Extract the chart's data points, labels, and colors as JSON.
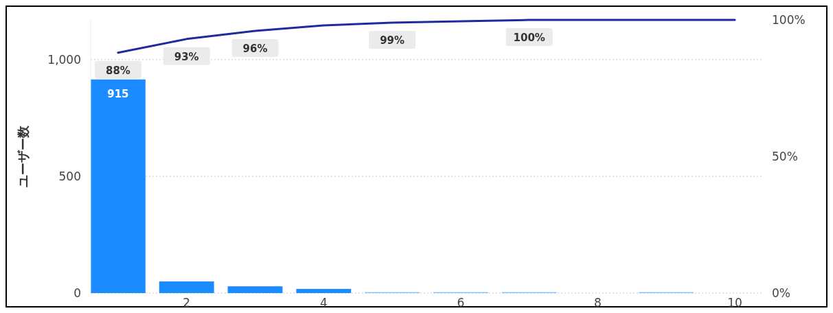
{
  "chart_data": {
    "type": "bar",
    "ylabel": "ユーザー数",
    "x": [
      1,
      2,
      3,
      4,
      5,
      6,
      7,
      8,
      9,
      10
    ],
    "series": [
      {
        "colors": [
          "#1a8cff",
          "#1a8cff",
          "#1a8cff",
          "#1a8cff",
          "#7fbfff",
          "#7fbfff",
          "#7fbfff",
          "#7fbfff",
          "#7fbfff",
          "#7fbfff"
        ],
        "values": [
          915,
          50,
          29,
          18,
          4,
          4,
          4,
          0,
          4,
          0
        ],
        "value_labels": [
          "915",
          null,
          null,
          null,
          null,
          null,
          null,
          null,
          null,
          null
        ]
      },
      {
        "type": "line",
        "axis": "y2",
        "color": "#1f2a9e",
        "values": [
          88,
          93,
          96,
          98,
          99,
          99.5,
          100,
          100,
          100,
          100
        ],
        "value_labels": [
          "88%",
          "93%",
          "96%",
          null,
          "99%",
          null,
          "100%",
          null,
          null,
          null
        ]
      }
    ],
    "xlim": [
      0.6,
      10.4
    ],
    "xticks": [
      2,
      4,
      6,
      8,
      10
    ],
    "ylim": [
      0,
      1170
    ],
    "yticks": [
      0,
      500,
      {
        "value": 1000,
        "label": "1,000"
      }
    ],
    "y2lim": [
      0,
      100
    ],
    "y2ticks": [
      {
        "value": 0,
        "label": "0%"
      },
      {
        "value": 50,
        "label": "50%"
      },
      {
        "value": 100,
        "label": "100%"
      }
    ],
    "grid": "y"
  }
}
